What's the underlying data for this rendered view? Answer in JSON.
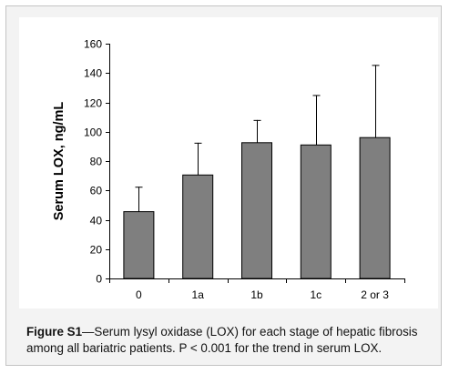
{
  "chart_data": {
    "type": "bar",
    "title": "",
    "xlabel": "",
    "ylabel": "Serum LOX, ng/mL",
    "categories": [
      "0",
      "1a",
      "1b",
      "1c",
      "2 or 3"
    ],
    "values": [
      45.5,
      70.5,
      92.5,
      91,
      96
    ],
    "error_bars_upper": [
      62.5,
      92.5,
      108,
      125,
      145.5
    ],
    "ylim": [
      0,
      160
    ],
    "yticks": [
      0,
      20,
      40,
      60,
      80,
      100,
      120,
      140,
      160
    ],
    "grid": false,
    "legend": "none",
    "bar_color": "#7f7f7f",
    "bar_edge_color": "#000000"
  },
  "caption": {
    "lead": "Figure S1",
    "text": "—Serum lysyl oxidase (LOX) for each stage of hepatic fibrosis among all bariatric patients. P < 0.001 for the trend in serum LOX."
  }
}
